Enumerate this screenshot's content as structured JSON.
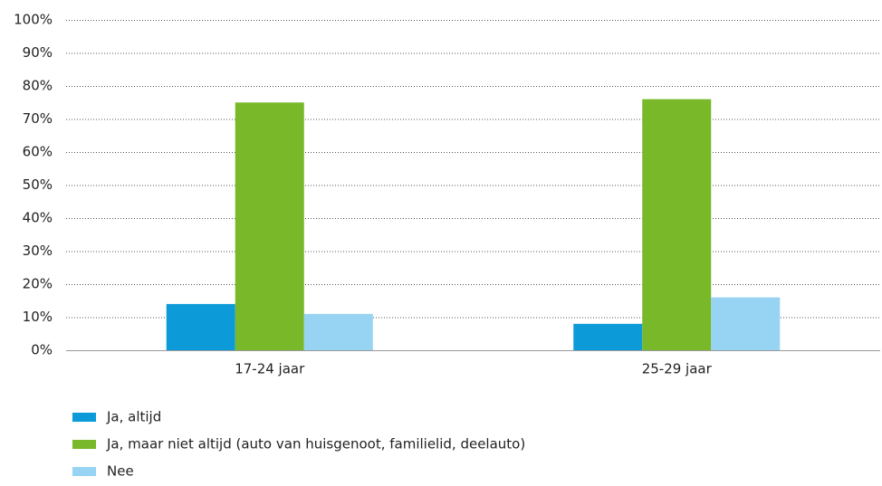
{
  "chart_data": {
    "type": "bar",
    "categories": [
      "17-24 jaar",
      "25-29 jaar"
    ],
    "series": [
      {
        "name": "Ja, altijd",
        "color": "#0c9ad8",
        "values": [
          14,
          8
        ]
      },
      {
        "name": "Ja, maar niet altijd (auto van huisgenoot, familielid, deelauto)",
        "color": "#78b829",
        "values": [
          75,
          76
        ]
      },
      {
        "name": "Nee",
        "color": "#97d3f2",
        "values": [
          11,
          16
        ]
      }
    ],
    "ylim": [
      0,
      100
    ],
    "yticks": [
      {
        "value": 0,
        "label": "0%"
      },
      {
        "value": 10,
        "label": "10%"
      },
      {
        "value": 20,
        "label": "20%"
      },
      {
        "value": 30,
        "label": "30%"
      },
      {
        "value": 40,
        "label": "40%"
      },
      {
        "value": 50,
        "label": "50%"
      },
      {
        "value": 60,
        "label": "60%"
      },
      {
        "value": 70,
        "label": "70%"
      },
      {
        "value": 80,
        "label": "80%"
      },
      {
        "value": 90,
        "label": "90%"
      },
      {
        "value": 100,
        "label": "100%"
      }
    ],
    "grid": true
  }
}
